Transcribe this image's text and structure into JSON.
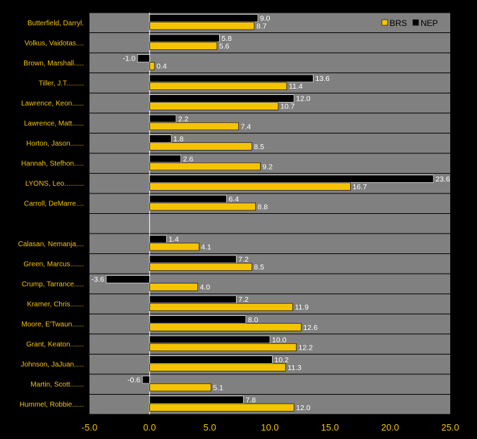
{
  "chart_data": {
    "type": "bar",
    "orientation": "horizontal",
    "categories": [
      "Butterfield, Darryl.",
      "Volkus, Vaidotas....",
      "Brown, Marshall.....",
      "Tiller, J.T.........",
      "Lawrence, Keon......",
      "Lawrence, Matt......",
      "Horton, Jason.......",
      "Hannah, Stefhon.....",
      "LYONS, Leo..........",
      "Carroll, DeMarre....",
      "",
      "Calasan, Nemanja....",
      "Green, Marcus.......",
      "Crump, Tarrance.....",
      "Kramer, Chris.......",
      "Moore, E'Twaun......",
      "Grant, Keaton.......",
      "Johnson, JaJuan.....",
      "Martin, Scott.......",
      "Hummel, Robbie......"
    ],
    "series": [
      {
        "name": "NEP",
        "color": "#000000",
        "values": [
          9.0,
          5.8,
          -1.0,
          13.6,
          12.0,
          2.2,
          1.8,
          2.6,
          23.6,
          6.4,
          null,
          1.4,
          7.2,
          -3.6,
          7.2,
          8.0,
          10.0,
          10.2,
          -0.6,
          7.8
        ],
        "labels": [
          "9.0",
          "5.8",
          "-1.0",
          "13.6",
          "12.0",
          "2.2",
          "1.8",
          "2.6",
          "23.6",
          "6.4",
          "",
          "1.4",
          "7.2",
          "-3.6",
          "7.2",
          "8.0",
          "10.0",
          "10.2",
          "-0.6",
          "7.8"
        ]
      },
      {
        "name": "BRS",
        "color": "#f5c400",
        "values": [
          8.7,
          5.6,
          0.4,
          11.4,
          10.7,
          7.4,
          8.5,
          9.2,
          16.7,
          8.8,
          null,
          4.1,
          8.5,
          4.0,
          11.9,
          12.6,
          12.2,
          11.3,
          5.1,
          12.0
        ],
        "labels": [
          "8.7",
          "5.6",
          "0.4",
          "11.4",
          "10.7",
          "7.4",
          "8.5",
          "9.2",
          "16.7",
          "8.8",
          "",
          "4.1",
          "8.5",
          "4.0",
          "11.9",
          "12.6",
          "12.2",
          "11.3",
          "5.1",
          "12.0"
        ]
      }
    ],
    "xlim": [
      -5.0,
      25.0
    ],
    "xticks": [
      "-5.0",
      "0.0",
      "5.0",
      "10.0",
      "15.0",
      "20.0",
      "25.0"
    ],
    "legend": [
      {
        "label": "BRS",
        "color": "#f5c400"
      },
      {
        "label": "NEP",
        "color": "#000000"
      }
    ],
    "legend_position": "top-right",
    "grid": "horizontal",
    "plot_background": "#808080",
    "page_background": "#000000"
  }
}
